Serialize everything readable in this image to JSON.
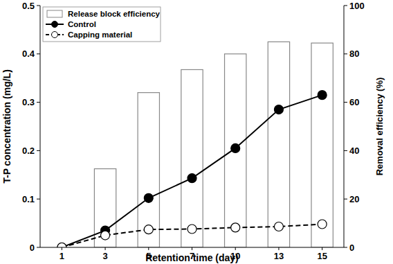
{
  "chart_data": {
    "type": "bar",
    "categories": [
      "1",
      "3",
      "5",
      "7",
      "10",
      "13",
      "15"
    ],
    "x_label": "Retention time (day)",
    "y_label": "T-P concentration (mg/L)",
    "y2_label": "Removal efficiency (%)",
    "ylim": [
      0,
      0.5
    ],
    "yticks": [
      0,
      0.1,
      0.2,
      0.3,
      0.4,
      0.5
    ],
    "y2lim": [
      0,
      100
    ],
    "y2ticks": [
      0,
      20,
      40,
      60,
      80,
      100
    ],
    "legend": "upper left",
    "series": [
      {
        "name": "Release block efficiency",
        "type": "bar",
        "axis": "y2",
        "color": "#888888",
        "values": [
          null,
          32.5,
          64,
          73.5,
          80,
          85,
          84.5
        ]
      },
      {
        "name": "Control",
        "type": "line",
        "color": "#000000",
        "marker": "circle",
        "line_style": "solid",
        "values": [
          0,
          0.035,
          0.102,
          0.143,
          0.205,
          0.285,
          0.315
        ]
      },
      {
        "name": "Capping material",
        "type": "line",
        "color": "#000000",
        "marker": "open-circle",
        "line_style": "dashed",
        "values": [
          0,
          0.025,
          0.037,
          0.038,
          0.041,
          0.043,
          0.048
        ]
      }
    ]
  }
}
